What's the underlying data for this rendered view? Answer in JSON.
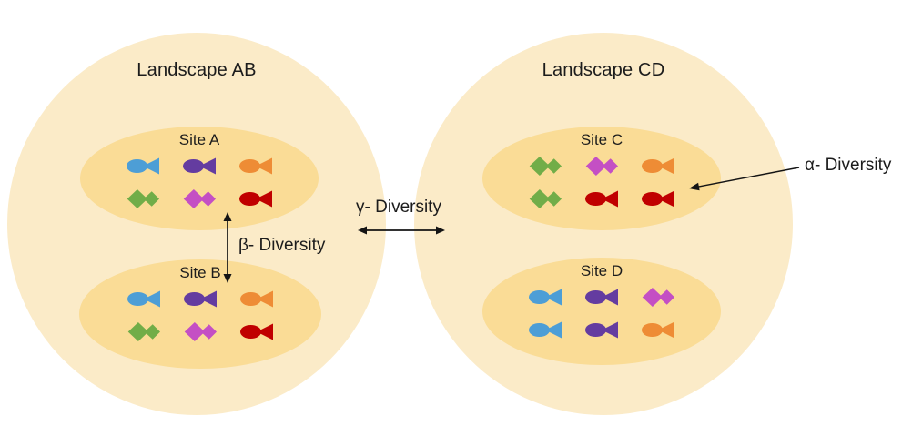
{
  "landscapes": [
    {
      "label": "Landscape AB",
      "sites": [
        {
          "label": "Site A",
          "rows": [
            [
              {
                "color": "blue",
                "shape": "round"
              },
              {
                "color": "purple",
                "shape": "round"
              },
              {
                "color": "orange",
                "shape": "round"
              }
            ],
            [
              {
                "color": "green",
                "shape": "diamond"
              },
              {
                "color": "magenta",
                "shape": "diamond"
              },
              {
                "color": "red",
                "shape": "round"
              }
            ]
          ]
        },
        {
          "label": "Site B",
          "rows": [
            [
              {
                "color": "blue",
                "shape": "round"
              },
              {
                "color": "purple",
                "shape": "round"
              },
              {
                "color": "orange",
                "shape": "round"
              }
            ],
            [
              {
                "color": "green",
                "shape": "diamond"
              },
              {
                "color": "magenta",
                "shape": "diamond"
              },
              {
                "color": "red",
                "shape": "round"
              }
            ]
          ]
        }
      ]
    },
    {
      "label": "Landscape CD",
      "sites": [
        {
          "label": "Site C",
          "rows": [
            [
              {
                "color": "green",
                "shape": "diamond"
              },
              {
                "color": "magenta",
                "shape": "diamond"
              },
              {
                "color": "orange",
                "shape": "round"
              }
            ],
            [
              {
                "color": "green",
                "shape": "diamond"
              },
              {
                "color": "red",
                "shape": "round"
              },
              {
                "color": "red",
                "shape": "round"
              }
            ]
          ]
        },
        {
          "label": "Site D",
          "rows": [
            [
              {
                "color": "blue",
                "shape": "round"
              },
              {
                "color": "purple",
                "shape": "round"
              },
              {
                "color": "magenta",
                "shape": "diamond"
              }
            ],
            [
              {
                "color": "blue",
                "shape": "round"
              },
              {
                "color": "purple",
                "shape": "round"
              },
              {
                "color": "orange",
                "shape": "round"
              }
            ]
          ]
        }
      ]
    }
  ],
  "annotations": {
    "alpha": {
      "label": "α- Diversity"
    },
    "beta": {
      "label": "β- Diversity"
    },
    "gamma": {
      "label": "γ- Diversity"
    }
  },
  "colors": {
    "landscape_fill": "#FBEBC8",
    "site_fill": "#FADC96",
    "arrow": "#141414",
    "text": "#1C1C1C",
    "fish": {
      "blue": "#4D9ED6",
      "purple": "#643CA0",
      "orange": "#EE8C35",
      "green": "#71AD48",
      "magenta": "#C44FC4",
      "red": "#C00000"
    }
  }
}
